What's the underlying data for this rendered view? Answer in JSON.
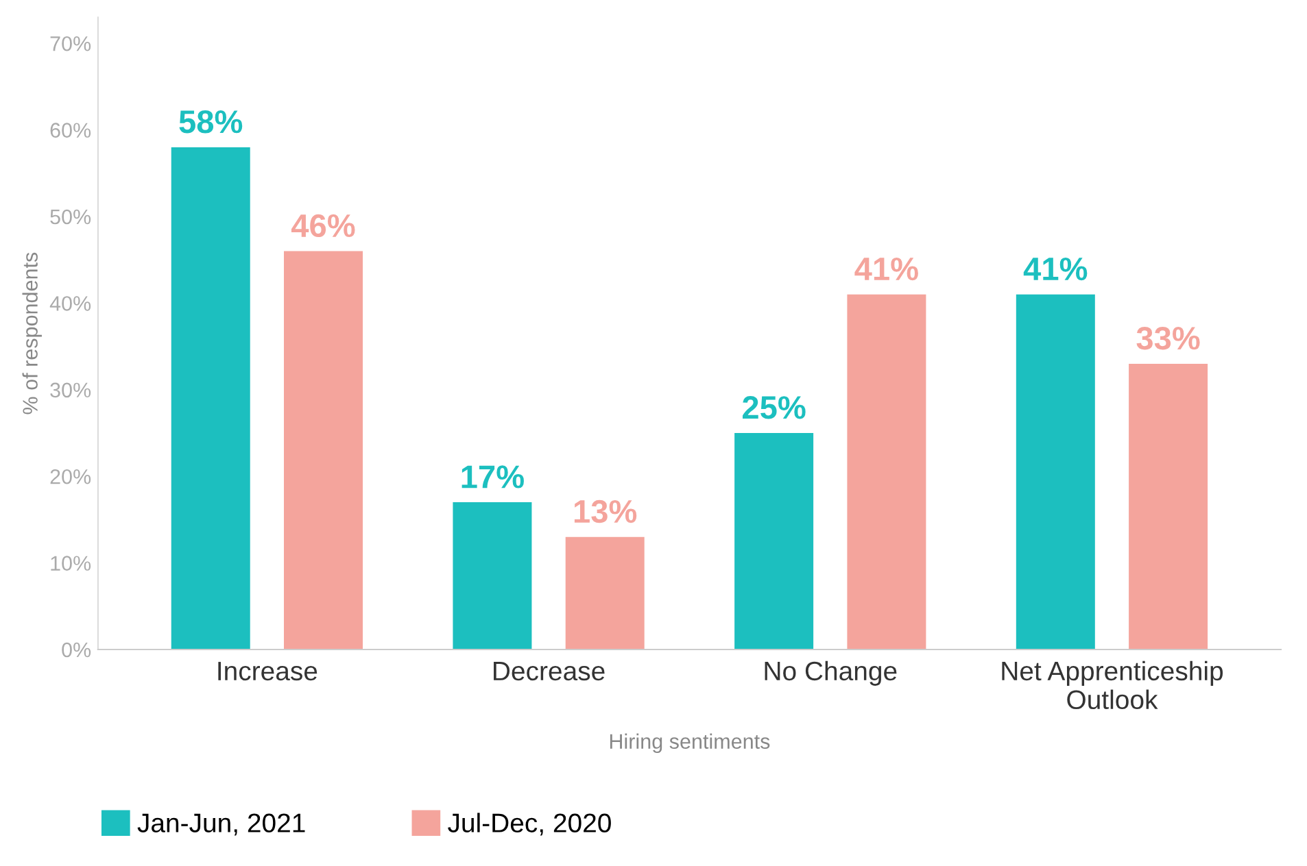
{
  "chart_data": {
    "type": "bar",
    "xlabel": "Hiring sentiments",
    "ylabel": "% of respondents",
    "categories": [
      "Increase",
      "Decrease",
      "No Change",
      "Net Apprenticeship Outlook"
    ],
    "series": [
      {
        "name": "Jan-Jun, 2021",
        "color": "#1cbfbf",
        "values": [
          58,
          17,
          25,
          41
        ],
        "value_labels": [
          "58%",
          "17%",
          "25%",
          "41%"
        ]
      },
      {
        "name": "Jul-Dec, 2020",
        "color": "#f4a49c",
        "values": [
          46,
          13,
          41,
          33
        ],
        "value_labels": [
          "46%",
          "13%",
          "41%",
          "33%"
        ]
      }
    ],
    "ylim": [
      0,
      73
    ],
    "yticks": [
      {
        "value": 0,
        "label": "0%"
      },
      {
        "value": 10,
        "label": "10%"
      },
      {
        "value": 20,
        "label": "20%"
      },
      {
        "value": 30,
        "label": "30%"
      },
      {
        "value": 40,
        "label": "40%"
      },
      {
        "value": 50,
        "label": "50%"
      },
      {
        "value": 60,
        "label": "60%"
      },
      {
        "value": 70,
        "label": "70%"
      }
    ],
    "grid": false,
    "legend": "bottom left"
  }
}
